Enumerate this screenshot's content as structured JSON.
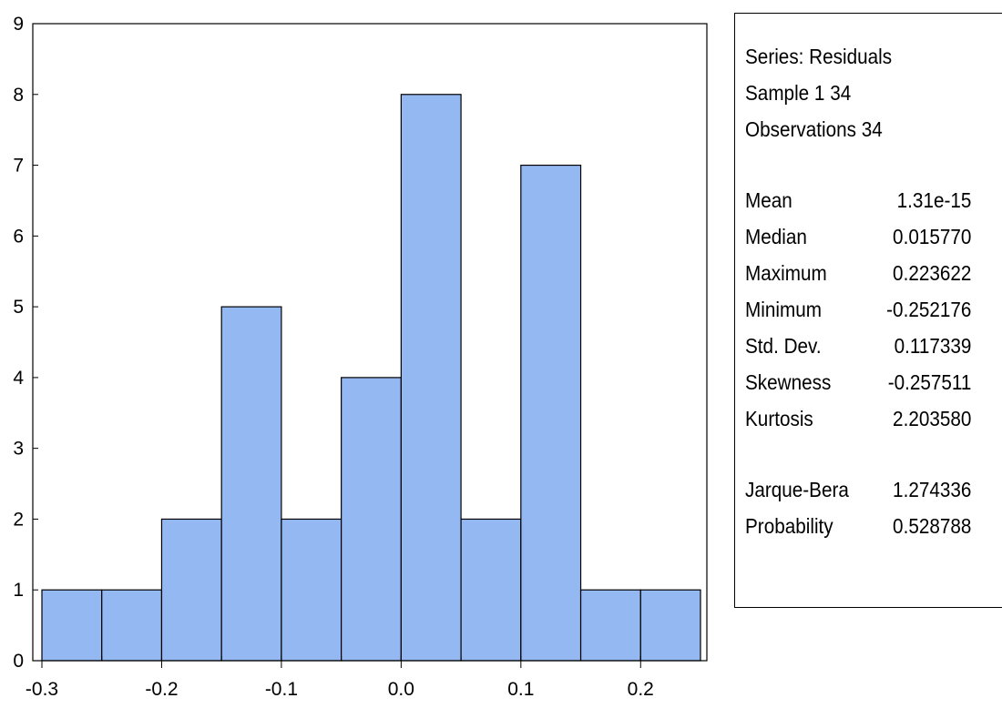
{
  "chart_data": {
    "type": "bar",
    "kind": "histogram",
    "bins": [
      {
        "from": -0.3,
        "to": -0.25,
        "count": 1
      },
      {
        "from": -0.25,
        "to": -0.2,
        "count": 1
      },
      {
        "from": -0.2,
        "to": -0.15,
        "count": 2
      },
      {
        "from": -0.15,
        "to": -0.1,
        "count": 5
      },
      {
        "from": -0.1,
        "to": -0.05,
        "count": 2
      },
      {
        "from": -0.05,
        "to": 0.0,
        "count": 4
      },
      {
        "from": 0.0,
        "to": 0.05,
        "count": 8
      },
      {
        "from": 0.05,
        "to": 0.1,
        "count": 2
      },
      {
        "from": 0.1,
        "to": 0.15,
        "count": 7
      },
      {
        "from": 0.15,
        "to": 0.2,
        "count": 1
      },
      {
        "from": 0.2,
        "to": 0.25,
        "count": 1
      }
    ],
    "xlim": [
      -0.3,
      0.25
    ],
    "ylim": [
      0,
      9
    ],
    "x_ticks": [
      -0.3,
      -0.2,
      -0.1,
      0.0,
      0.1,
      0.2
    ],
    "x_tick_labels": [
      "-0.3",
      "-0.2",
      "-0.1",
      "0.0",
      "0.1",
      "0.2"
    ],
    "y_ticks": [
      0,
      1,
      2,
      3,
      4,
      5,
      6,
      7,
      8,
      9
    ],
    "y_tick_labels": [
      "0",
      "1",
      "2",
      "3",
      "4",
      "5",
      "6",
      "7",
      "8",
      "9"
    ],
    "bar_color": "#94b8f2",
    "grid": false
  },
  "stats": {
    "series": "Series: Residuals",
    "sample": "Sample 1 34",
    "observations": "Observations 34",
    "rows": [
      {
        "label": "Mean",
        "value": "1.31e-15"
      },
      {
        "label": "Median",
        "value": "0.015770"
      },
      {
        "label": "Maximum",
        "value": "0.223622"
      },
      {
        "label": "Minimum",
        "value": "-0.252176"
      },
      {
        "label": "Std. Dev.",
        "value": "0.117339"
      },
      {
        "label": "Skewness",
        "value": "-0.257511"
      },
      {
        "label": "Kurtosis",
        "value": "2.203580"
      }
    ],
    "tests": [
      {
        "label": "Jarque-Bera",
        "value": "1.274336"
      },
      {
        "label": "Probability",
        "value": "0.528788"
      }
    ]
  }
}
